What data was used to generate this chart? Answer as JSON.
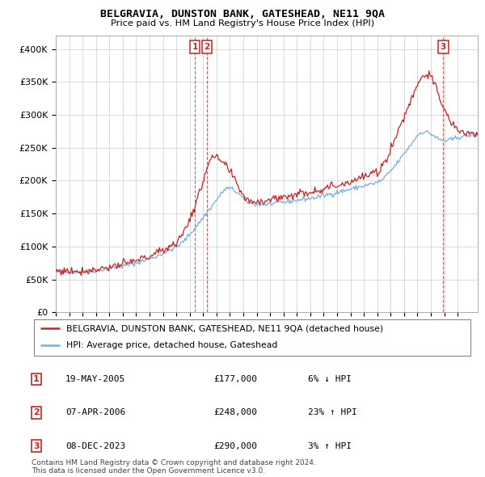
{
  "title": "BELGRAVIA, DUNSTON BANK, GATESHEAD, NE11 9QA",
  "subtitle": "Price paid vs. HM Land Registry's House Price Index (HPI)",
  "ylim": [
    0,
    420000
  ],
  "yticks": [
    0,
    50000,
    100000,
    150000,
    200000,
    250000,
    300000,
    350000,
    400000
  ],
  "ytick_labels": [
    "£0",
    "£50K",
    "£100K",
    "£150K",
    "£200K",
    "£250K",
    "£300K",
    "£350K",
    "£400K"
  ],
  "xlim_start": 1995.0,
  "xlim_end": 2026.5,
  "hpi_color": "#7aaddc",
  "price_color": "#cc2222",
  "legend_label_red": "BELGRAVIA, DUNSTON BANK, GATESHEAD, NE11 9QA (detached house)",
  "legend_label_blue": "HPI: Average price, detached house, Gateshead",
  "transactions": [
    {
      "id": 1,
      "date_num": 2005.38,
      "price": 177000,
      "label": "1"
    },
    {
      "id": 2,
      "date_num": 2006.27,
      "price": 248000,
      "label": "2"
    },
    {
      "id": 3,
      "date_num": 2023.93,
      "price": 290000,
      "label": "3"
    }
  ],
  "table_rows": [
    {
      "num": "1",
      "date": "19-MAY-2005",
      "price": "£177,000",
      "change": "6% ↓ HPI"
    },
    {
      "num": "2",
      "date": "07-APR-2006",
      "price": "£248,000",
      "change": "23% ↑ HPI"
    },
    {
      "num": "3",
      "date": "08-DEC-2023",
      "price": "£290,000",
      "change": "3% ↑ HPI"
    }
  ],
  "footer": "Contains HM Land Registry data © Crown copyright and database right 2024.\nThis data is licensed under the Open Government Licence v3.0.",
  "background_color": "#ffffff",
  "grid_color": "#cccccc",
  "vline_color": "#cc2222"
}
